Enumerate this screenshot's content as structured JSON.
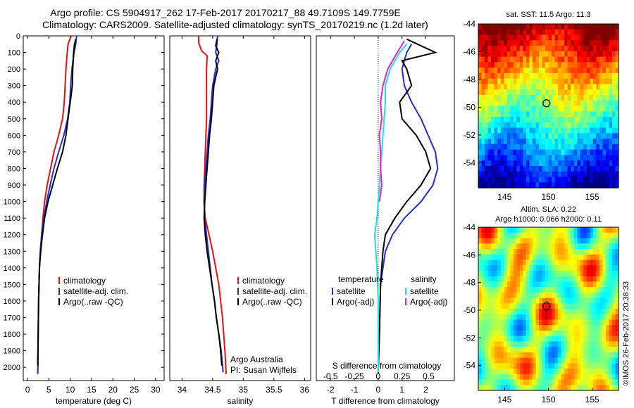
{
  "header": {
    "title_line1": "Argo profile: CS 5904917_262 17-Feb-2017 20170217_88 49.7109S 149.7759E",
    "title_line2": "Climatology: CARS2009. Satellite-adjusted climatology: synTS_20170219.nc (1.2d later)"
  },
  "footer_credit": "©IMOS 26-Feb-2017 20:38:33",
  "colors": {
    "climatology": "#e8120c",
    "satellite": "#1f2fd0",
    "argo": "#000000",
    "sat_salinity": "#20e0e0",
    "argo_adj_salinity": "#e020e0"
  },
  "chart_data": [
    {
      "id": "temperature",
      "type": "line",
      "xlabel": "temperature (deg C)",
      "ylabel": "",
      "xlim": [
        -1,
        32
      ],
      "ylim": [
        2080,
        0
      ],
      "xticks": [
        0,
        5,
        10,
        15,
        20,
        25,
        30
      ],
      "yticks": [
        0,
        100,
        200,
        300,
        400,
        500,
        600,
        700,
        800,
        900,
        1000,
        1100,
        1200,
        1300,
        1400,
        1500,
        1600,
        1700,
        1800,
        1900,
        2000
      ],
      "legend": [
        "climatology",
        "satellite-adj. clim.",
        "Argo(..raw -QC)"
      ],
      "legend_position": "lower-right",
      "series": [
        {
          "name": "climatology",
          "color": "#e8120c",
          "points": [
            [
              10.2,
              0
            ],
            [
              9.5,
              50
            ],
            [
              9.3,
              100
            ],
            [
              9.0,
              200
            ],
            [
              8.8,
              300
            ],
            [
              8.6,
              400
            ],
            [
              8.2,
              500
            ],
            [
              7.3,
              600
            ],
            [
              6.2,
              700
            ],
            [
              5.4,
              800
            ],
            [
              4.6,
              900
            ],
            [
              4.0,
              1000
            ],
            [
              3.6,
              1100
            ],
            [
              3.3,
              1200
            ],
            [
              3.0,
              1300
            ],
            [
              2.8,
              1400
            ],
            [
              2.6,
              1600
            ],
            [
              2.5,
              1800
            ],
            [
              2.4,
              2040
            ]
          ]
        },
        {
          "name": "satellite-adj. clim.",
          "color": "#1f2fd0",
          "points": [
            [
              11.5,
              0
            ],
            [
              11.3,
              50
            ],
            [
              10.9,
              100
            ],
            [
              10.4,
              200
            ],
            [
              10.1,
              300
            ],
            [
              9.9,
              400
            ],
            [
              9.4,
              500
            ],
            [
              8.5,
              600
            ],
            [
              7.3,
              700
            ],
            [
              6.2,
              800
            ],
            [
              5.3,
              900
            ],
            [
              4.5,
              1000
            ],
            [
              3.8,
              1100
            ],
            [
              3.3,
              1200
            ],
            [
              3.0,
              1300
            ],
            [
              2.8,
              1400
            ],
            [
              2.6,
              1600
            ],
            [
              2.5,
              1800
            ],
            [
              2.4,
              2040
            ]
          ]
        },
        {
          "name": "Argo(..raw -QC)",
          "color": "#000000",
          "points": [
            [
              11.3,
              20
            ],
            [
              11.0,
              50
            ],
            [
              10.8,
              100
            ],
            [
              10.6,
              200
            ],
            [
              10.5,
              300
            ],
            [
              10.0,
              400
            ],
            [
              9.5,
              500
            ],
            [
              9.0,
              600
            ],
            [
              8.2,
              700
            ],
            [
              7.0,
              800
            ],
            [
              5.9,
              900
            ],
            [
              4.8,
              1000
            ],
            [
              4.0,
              1100
            ],
            [
              3.5,
              1200
            ],
            [
              3.1,
              1300
            ],
            [
              2.8,
              1400
            ],
            [
              2.6,
              1600
            ],
            [
              2.5,
              1800
            ],
            [
              2.4,
              1990
            ]
          ]
        }
      ]
    },
    {
      "id": "salinity",
      "type": "line",
      "xlabel": "salinity",
      "ylabel": "",
      "xlim": [
        33.8,
        36.1
      ],
      "ylim": [
        2080,
        0
      ],
      "xticks": [
        34,
        34.5,
        35,
        35.5,
        36
      ],
      "yticks": [],
      "legend": [
        "climatology",
        "satellite-adj. clim.",
        "Argo(..raw -QC)"
      ],
      "legend_position": "lower-right",
      "annotations": [
        "Argo Australia",
        "PI: Susan Wijffels"
      ],
      "series": [
        {
          "name": "climatology",
          "color": "#e8120c",
          "points": [
            [
              34.27,
              0
            ],
            [
              34.27,
              40
            ],
            [
              34.32,
              90
            ],
            [
              34.41,
              120
            ],
            [
              34.4,
              200
            ],
            [
              34.4,
              300
            ],
            [
              34.4,
              400
            ],
            [
              34.4,
              500
            ],
            [
              34.39,
              600
            ],
            [
              34.38,
              700
            ],
            [
              34.37,
              800
            ],
            [
              34.36,
              900
            ],
            [
              34.36,
              1000
            ],
            [
              34.38,
              1100
            ],
            [
              34.44,
              1200
            ],
            [
              34.5,
              1300
            ],
            [
              34.55,
              1400
            ],
            [
              34.6,
              1500
            ],
            [
              34.63,
              1600
            ],
            [
              34.66,
              1700
            ],
            [
              34.68,
              1800
            ],
            [
              34.7,
              1900
            ],
            [
              34.72,
              2040
            ]
          ]
        },
        {
          "name": "satellite-adj. clim.",
          "color": "#1f2fd0",
          "points": [
            [
              34.58,
              0
            ],
            [
              34.57,
              50
            ],
            [
              34.55,
              100
            ],
            [
              34.6,
              150
            ],
            [
              34.55,
              200
            ],
            [
              34.5,
              300
            ],
            [
              34.48,
              400
            ],
            [
              34.46,
              500
            ],
            [
              34.43,
              600
            ],
            [
              34.41,
              700
            ],
            [
              34.39,
              800
            ],
            [
              34.37,
              900
            ],
            [
              34.36,
              1000
            ],
            [
              34.37,
              1100
            ],
            [
              34.4,
              1200
            ],
            [
              34.43,
              1300
            ],
            [
              34.46,
              1400
            ],
            [
              34.49,
              1500
            ],
            [
              34.53,
              1600
            ],
            [
              34.56,
              1700
            ],
            [
              34.6,
              1800
            ],
            [
              34.64,
              1900
            ],
            [
              34.67,
              2030
            ]
          ]
        },
        {
          "name": "Argo(..raw -QC)",
          "color": "#000000",
          "points": [
            [
              34.57,
              20
            ],
            [
              34.55,
              60
            ],
            [
              34.6,
              100
            ],
            [
              34.55,
              150
            ],
            [
              34.58,
              200
            ],
            [
              34.52,
              300
            ],
            [
              34.5,
              400
            ],
            [
              34.48,
              500
            ],
            [
              34.45,
              600
            ],
            [
              34.43,
              700
            ],
            [
              34.41,
              800
            ],
            [
              34.39,
              900
            ],
            [
              34.37,
              1000
            ],
            [
              34.36,
              1100
            ],
            [
              34.38,
              1200
            ],
            [
              34.41,
              1300
            ],
            [
              34.45,
              1400
            ],
            [
              34.49,
              1500
            ],
            [
              34.53,
              1600
            ],
            [
              34.56,
              1700
            ],
            [
              34.6,
              1800
            ],
            [
              34.63,
              1900
            ],
            [
              34.65,
              1990
            ]
          ]
        }
      ]
    },
    {
      "id": "difference",
      "type": "line",
      "xlabel": "T difference from climatology",
      "xlabel_top": "S difference from climatology",
      "ylabel": "",
      "xlim": [
        -2.6,
        3.2
      ],
      "ylim": [
        2080,
        0
      ],
      "xticks": [
        -2,
        -1,
        0,
        1,
        2
      ],
      "xticks_top": [
        "-0.5",
        "-0.25",
        "0",
        "0.25",
        "0.5"
      ],
      "yticks": [],
      "legend_titles": [
        "temperature",
        "salinity"
      ],
      "legend": [
        "satellite",
        "Argo(-adj)",
        "satellite",
        "Argo(-adj)"
      ],
      "legend_position": "lower",
      "series": [
        {
          "name": "temperature satellite",
          "color": "#1f2fd0",
          "points": [
            [
              1.4,
              50
            ],
            [
              1.2,
              100
            ],
            [
              1.0,
              200
            ],
            [
              1.1,
              300
            ],
            [
              1.4,
              400
            ],
            [
              1.8,
              500
            ],
            [
              2.1,
              600
            ],
            [
              2.4,
              700
            ],
            [
              2.5,
              800
            ],
            [
              2.3,
              900
            ],
            [
              1.8,
              1000
            ],
            [
              1.1,
              1100
            ],
            [
              0.6,
              1200
            ],
            [
              0.3,
              1300
            ],
            [
              0.1,
              1500
            ],
            [
              0.05,
              1800
            ],
            [
              0.0,
              2040
            ]
          ]
        },
        {
          "name": "temperature Argo(-adj)",
          "color": "#000000",
          "points": [
            [
              1.2,
              20
            ],
            [
              2.4,
              100
            ],
            [
              1.0,
              150
            ],
            [
              1.2,
              200
            ],
            [
              1.4,
              300
            ],
            [
              0.9,
              400
            ],
            [
              1.0,
              500
            ],
            [
              1.6,
              600
            ],
            [
              2.0,
              700
            ],
            [
              2.2,
              800
            ],
            [
              1.8,
              900
            ],
            [
              1.2,
              1000
            ],
            [
              0.7,
              1100
            ],
            [
              0.3,
              1200
            ],
            [
              0.2,
              1300
            ],
            [
              0.1,
              1500
            ],
            [
              0.05,
              1800
            ],
            [
              0.0,
              1990
            ]
          ]
        },
        {
          "name": "salinity satellite",
          "color": "#20e0e0",
          "points": [
            [
              1.2,
              50
            ],
            [
              0.9,
              100
            ],
            [
              0.5,
              200
            ],
            [
              0.3,
              300
            ],
            [
              0.3,
              400
            ],
            [
              0.25,
              500
            ],
            [
              0.2,
              600
            ],
            [
              0.15,
              700
            ],
            [
              0.1,
              800
            ],
            [
              0.05,
              900
            ],
            [
              0.0,
              1000
            ],
            [
              -0.05,
              1100
            ],
            [
              -0.15,
              1200
            ],
            [
              -0.05,
              1400
            ],
            [
              0.0,
              1600
            ],
            [
              0.0,
              2030
            ]
          ]
        },
        {
          "name": "salinity Argo(-adj)",
          "color": "#e020e0",
          "points": [
            [
              1.1,
              30
            ],
            [
              0.8,
              100
            ],
            [
              0.4,
              200
            ],
            [
              0.2,
              300
            ],
            [
              0.1,
              400
            ],
            [
              0.15,
              500
            ],
            [
              0.05,
              600
            ],
            [
              0.1,
              700
            ],
            [
              0.1,
              800
            ],
            [
              0.15,
              900
            ],
            [
              0.05,
              1000
            ]
          ]
        }
      ]
    },
    {
      "id": "sst_map",
      "type": "heatmap",
      "title": "sat. SST: 11.5 Argo: 11.3",
      "xticks": [
        145,
        150,
        155
      ],
      "yticks": [
        -44,
        -46,
        -48,
        -50,
        -52,
        -54
      ],
      "xlim": [
        142,
        158
      ],
      "ylim": [
        -55.8,
        -44
      ],
      "marker": [
        149.78,
        -49.71
      ]
    },
    {
      "id": "sla_map",
      "type": "heatmap",
      "title_line1": "Altim. SLA: 0.22",
      "title_line2": "Argo h1000: 0.066 h2000: 0.11",
      "xticks": [
        145,
        150,
        155
      ],
      "yticks": [
        -44,
        -46,
        -48,
        -50,
        -52,
        -54
      ],
      "xlim": [
        142,
        158
      ],
      "ylim": [
        -55.8,
        -44
      ],
      "marker": [
        149.78,
        -49.71
      ]
    }
  ]
}
